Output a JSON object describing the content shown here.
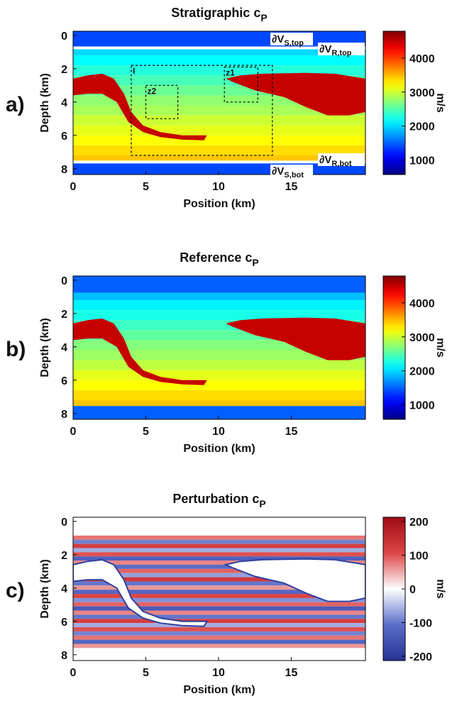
{
  "chart_data": [
    {
      "type": "heatmap",
      "panel_label": "a)",
      "title": "Stratigraphic c",
      "title_subscript": "P",
      "x_label": "Position (km)",
      "y_label": "Depth (km)",
      "xlim": [
        0,
        20.1
      ],
      "xticks": [
        0,
        5,
        10,
        15
      ],
      "ylim": [
        -0.25,
        8.35
      ],
      "yticks": [
        0,
        2,
        4,
        6,
        8
      ],
      "layer_depths": [
        -0.25,
        0.75,
        1.2,
        1.8,
        2.4,
        3.0,
        3.6,
        4.2,
        4.8,
        5.4,
        6.0,
        6.6,
        7.2,
        7.55,
        8.35
      ],
      "values": [
        1400,
        2000,
        2150,
        2300,
        2450,
        2600,
        2750,
        2850,
        3000,
        3100,
        3200,
        3350,
        3450,
        1400
      ],
      "salt_value": 4500,
      "colormap": "jet",
      "colorbar_label": "m/s",
      "zlim": [
        575,
        4790
      ],
      "zticks": [
        1000,
        2000,
        3000,
        4000
      ],
      "annotations": [
        {
          "text": "∂V",
          "subscript": "S,top"
        },
        {
          "text": "∂V",
          "subscript": "R,top"
        },
        {
          "text": "∂V",
          "subscript": "R,bot"
        },
        {
          "text": "∂V",
          "subscript": "S,bot"
        }
      ],
      "boxes": [
        "I",
        "z1",
        "z2"
      ]
    },
    {
      "type": "heatmap",
      "panel_label": "b)",
      "title": "Reference c",
      "title_subscript": "P",
      "x_label": "Position (km)",
      "y_label": "Depth (km)",
      "xlim": [
        0,
        20.1
      ],
      "xticks": [
        0,
        5,
        10,
        15
      ],
      "ylim": [
        -0.25,
        8.35
      ],
      "yticks": [
        0,
        2,
        4,
        6,
        8
      ],
      "layer_depths": [
        -0.25,
        0.75,
        1.2,
        1.8,
        2.4,
        3.0,
        3.6,
        4.2,
        4.8,
        5.4,
        6.0,
        6.6,
        7.2,
        7.55,
        8.35
      ],
      "values": [
        1500,
        1900,
        2100,
        2250,
        2400,
        2550,
        2700,
        2800,
        2950,
        3100,
        3200,
        3350,
        3450,
        1500
      ],
      "salt_value": 4500,
      "colormap": "jet",
      "colorbar_label": "m/s",
      "zlim": [
        575,
        4790
      ],
      "zticks": [
        1000,
        2000,
        3000,
        4000
      ]
    },
    {
      "type": "heatmap",
      "panel_label": "c)",
      "title": "Perturbation c",
      "title_subscript": "P",
      "x_label": "Position (km)",
      "y_label": "Depth (km)",
      "xlim": [
        0,
        20.1
      ],
      "xticks": [
        0,
        5,
        10,
        15
      ],
      "ylim": [
        -0.25,
        8.35
      ],
      "yticks": [
        0,
        2,
        4,
        6,
        8
      ],
      "layer_depths": [
        -0.25,
        0.85,
        1.1,
        1.35,
        1.6,
        1.85,
        2.1,
        2.35,
        2.6,
        2.85,
        3.1,
        3.35,
        3.6,
        3.85,
        4.1,
        4.35,
        4.6,
        4.85,
        5.1,
        5.35,
        5.6,
        5.85,
        6.1,
        6.35,
        6.6,
        6.85,
        7.1,
        7.35,
        7.6,
        8.35
      ],
      "values": [
        0,
        80,
        -90,
        120,
        -60,
        100,
        -130,
        70,
        -110,
        90,
        -70,
        130,
        -100,
        60,
        -120,
        110,
        -80,
        90,
        -140,
        70,
        -100,
        120,
        -60,
        100,
        -90,
        80,
        -120,
        60,
        0
      ],
      "salt_value": 0,
      "colormap": "bwr",
      "colorbar_label": "m/s",
      "zlim": [
        -213,
        213
      ],
      "zticks": [
        -200,
        -100,
        0,
        100,
        200
      ]
    }
  ]
}
